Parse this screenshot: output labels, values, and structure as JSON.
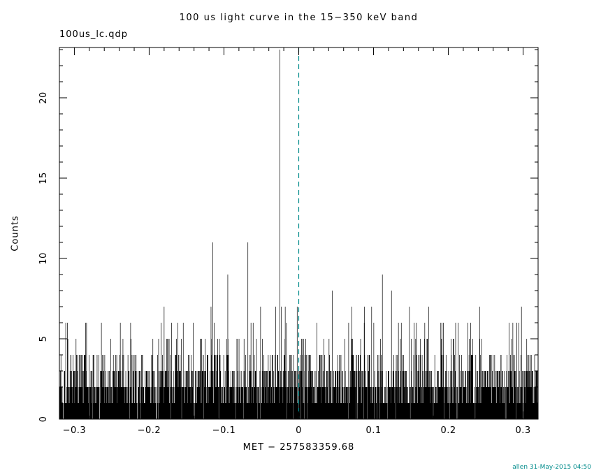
{
  "chart_data": {
    "type": "line",
    "subtype": "impulse-histogram-light-curve",
    "title": "100 us light curve in the 15−350 keV band",
    "file_label": "100us_lc.qdp",
    "xlabel": "MET − 257583359.68",
    "ylabel": "Counts",
    "credit": "allen 31-May-2015 04:50",
    "xlim": [
      -0.32,
      0.32
    ],
    "ylim": [
      0,
      23.13
    ],
    "grid": false,
    "legend": "none",
    "series_color": "#000000",
    "background_color": "#ffffff",
    "x_major_ticks": [
      {
        "v": -0.3,
        "label": "−0.3"
      },
      {
        "v": -0.2,
        "label": "−0.2"
      },
      {
        "v": -0.1,
        "label": "−0.1"
      },
      {
        "v": 0,
        "label": "0"
      },
      {
        "v": 0.1,
        "label": "0.1"
      },
      {
        "v": 0.2,
        "label": "0.2"
      },
      {
        "v": 0.3,
        "label": "0.3"
      }
    ],
    "x_minor_step": 0.02,
    "y_major_ticks": [
      {
        "v": 0,
        "label": "0"
      },
      {
        "v": 5,
        "label": "5"
      },
      {
        "v": 10,
        "label": "10"
      },
      {
        "v": 15,
        "label": "15"
      },
      {
        "v": 20,
        "label": "20"
      }
    ],
    "y_minor_step": 1,
    "marker_line": {
      "x": 0,
      "style": "dashed",
      "color": "#008b8b"
    },
    "noise_model": {
      "description": "dense background counts per 100 us bin, Poisson-distributed, mostly 0-5 with occasional 6-7",
      "bins": 2000,
      "poisson_mean": 1.9,
      "max_background": 7,
      "seed": 20150531
    },
    "notable_spikes": [
      {
        "x": -0.285,
        "y": 6
      },
      {
        "x": -0.225,
        "y": 6
      },
      {
        "x": -0.18,
        "y": 7
      },
      {
        "x": -0.115,
        "y": 11
      },
      {
        "x": -0.095,
        "y": 9
      },
      {
        "x": -0.068,
        "y": 11
      },
      {
        "x": -0.051,
        "y": 7
      },
      {
        "x": -0.025,
        "y": 23
      },
      {
        "x": -0.018,
        "y": 7
      },
      {
        "x": -0.002,
        "y": 7
      },
      {
        "x": 0.045,
        "y": 8
      },
      {
        "x": 0.071,
        "y": 7
      },
      {
        "x": 0.088,
        "y": 7
      },
      {
        "x": 0.112,
        "y": 9
      },
      {
        "x": 0.124,
        "y": 8
      },
      {
        "x": 0.148,
        "y": 7
      },
      {
        "x": 0.19,
        "y": 6
      },
      {
        "x": 0.242,
        "y": 7
      },
      {
        "x": 0.298,
        "y": 7
      }
    ]
  }
}
